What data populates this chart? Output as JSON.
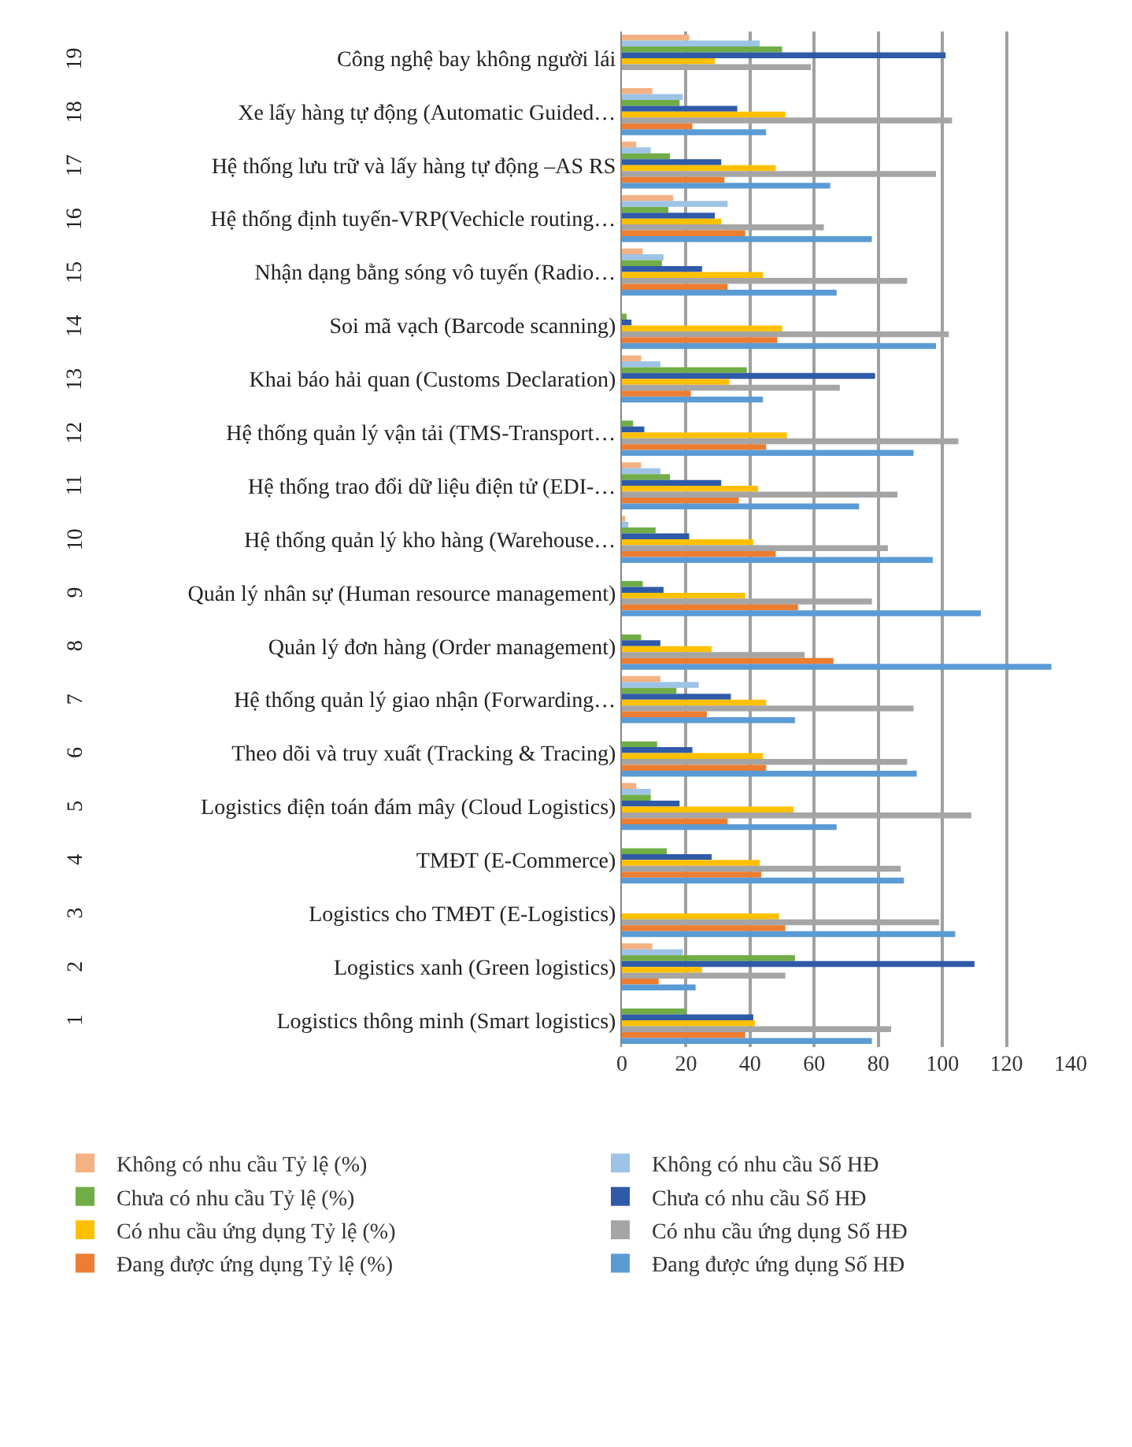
{
  "chart_data": {
    "type": "bar",
    "orientation": "horizontal",
    "categories": [
      "Công nghệ bay không người lái",
      "Xe lấy hàng tự động (Automatic Guided…",
      "Hệ thống lưu trữ và lấy hàng tự động –AS RS",
      "Hệ thống định tuyến-VRP(Vechicle routing…",
      "Nhận dạng bằng sóng vô tuyến (Radio…",
      "Soi mã vạch (Barcode scanning)",
      "Khai báo hải quan (Customs Declaration)",
      "Hệ thống quản lý vận tải (TMS-Transport…",
      "Hệ thống trao đổi dữ liệu điện tử (EDI-…",
      "Hệ thống quản lý kho hàng (Warehouse…",
      "Quản lý nhân sự (Human resource management)",
      "Quản lý đơn hàng (Order management)",
      "Hệ thống quản lý giao nhận (Forwarding…",
      "Theo dõi và truy xuất (Tracking & Tracing)",
      "Logistics điện toán đám mây (Cloud Logistics)",
      "TMĐT (E-Commerce)",
      "Logistics cho TMĐT (E-Logistics)",
      "Logistics xanh (Green logistics)",
      "Logistics thông minh (Smart logistics)"
    ],
    "y2_categories": [
      "19",
      "18",
      "17",
      "16",
      "15",
      "14",
      "13",
      "12",
      "11",
      "10",
      "9",
      "8",
      "7",
      "6",
      "5",
      "4",
      "3",
      "2",
      "1"
    ],
    "series": [
      {
        "name": "Không có nhu cầu Tỷ lệ (%)",
        "color": "#f4b183",
        "values": [
          21,
          9.5,
          4.5,
          16,
          6.5,
          0,
          6,
          0,
          6,
          1,
          0,
          0,
          12,
          0,
          4.5,
          0,
          0,
          9.5,
          0
        ]
      },
      {
        "name": "Không có nhu cầu Số HĐ",
        "color": "#9dc3e6",
        "values": [
          43,
          19,
          9,
          33,
          13,
          0,
          12,
          0,
          12,
          2,
          0,
          0,
          24,
          0,
          9,
          0,
          0,
          19,
          0
        ]
      },
      {
        "name": "Chưa có nhu cầu Tỷ lệ (%)",
        "color": "#70ad47",
        "values": [
          50,
          18,
          15,
          14.5,
          12.5,
          1.5,
          39,
          3.5,
          15,
          10.5,
          6.5,
          6,
          17,
          11,
          9,
          14,
          0,
          54,
          20
        ]
      },
      {
        "name": "Chưa có nhu cầu Số HĐ",
        "color": "#2f5aa8",
        "values": [
          101,
          36,
          31,
          29,
          25,
          3,
          79,
          7,
          31,
          21,
          13,
          12,
          34,
          22,
          18,
          28,
          0,
          110,
          41
        ]
      },
      {
        "name": "Có nhu cầu ứng dụng Tỷ lệ (%)",
        "color": "#ffc000",
        "values": [
          29,
          51,
          48,
          31,
          44,
          50,
          33.5,
          51.5,
          42.5,
          41,
          38.5,
          28,
          45,
          44,
          53.5,
          43,
          49,
          25,
          41.5
        ]
      },
      {
        "name": "Có nhu cầu ứng dụng Số HĐ",
        "color": "#a5a5a5",
        "values": [
          59,
          103,
          98,
          63,
          89,
          102,
          68,
          105,
          86,
          83,
          78,
          57,
          91,
          89,
          109,
          87,
          99,
          51,
          84
        ]
      },
      {
        "name": "Đang được ứng dụng Tỷ lệ (%)",
        "color": "#ed7d31",
        "values": [
          0,
          22,
          32,
          38.5,
          33,
          48.5,
          21.5,
          45,
          36.5,
          48,
          55,
          66,
          26.5,
          45,
          33,
          43.5,
          51,
          11.5,
          38.5
        ]
      },
      {
        "name": "Đang được ứng dụng Số HĐ",
        "color": "#5b9bd5",
        "values": [
          0,
          45,
          65,
          78,
          67,
          98,
          44,
          91,
          74,
          97,
          112,
          134,
          54,
          92,
          67,
          88,
          104,
          23,
          78
        ]
      }
    ],
    "xlim": [
      0,
      140
    ],
    "xticks": [
      0,
      20,
      40,
      60,
      80,
      100,
      120,
      140
    ],
    "grid": "x",
    "legend": "bottom"
  }
}
